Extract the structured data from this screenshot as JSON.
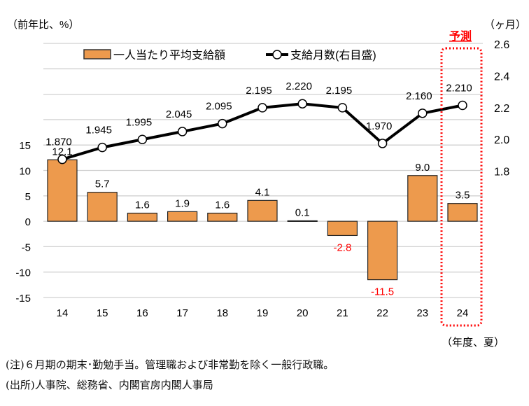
{
  "chart_data": {
    "type": "bar+line",
    "left_axis_label": "（前年比、%）",
    "right_axis_label": "（ヶ月）",
    "x_axis_label": "（年度、夏）",
    "categories": [
      "14",
      "15",
      "16",
      "17",
      "18",
      "19",
      "20",
      "21",
      "22",
      "23",
      "24"
    ],
    "series": [
      {
        "name": "一人当たり平均支給額",
        "type": "bar",
        "axis": "left",
        "values": [
          12.1,
          5.7,
          1.6,
          1.9,
          1.6,
          4.1,
          0.1,
          -2.8,
          -11.5,
          9.0,
          3.5
        ],
        "labels": [
          "12.1",
          "5.7",
          "1.6",
          "1.9",
          "1.6",
          "4.1",
          "0.1",
          "-2.8",
          "-11.5",
          "9.0",
          "3.5"
        ],
        "color": "#ED9A4D"
      },
      {
        "name": "支給月数(右目盛)",
        "type": "line",
        "axis": "right",
        "values": [
          1.87,
          1.945,
          1.995,
          2.045,
          2.095,
          2.195,
          2.22,
          2.195,
          1.97,
          2.16,
          2.21
        ],
        "labels": [
          "1.870",
          "1.945",
          "1.995",
          "2.045",
          "2.095",
          "2.195",
          "2.220",
          "2.195",
          "1.970",
          "2.160",
          "2.210"
        ],
        "color": "#000000"
      }
    ],
    "left_ticks": [
      "15",
      "10",
      "5",
      "0",
      "-5",
      "-10",
      "-15"
    ],
    "left_tick_values": [
      15,
      10,
      5,
      0,
      -5,
      -10,
      -15
    ],
    "right_ticks": [
      "2.6",
      "2.4",
      "2.2",
      "2.0",
      "1.8"
    ],
    "right_tick_values": [
      2.6,
      2.4,
      2.2,
      2.0,
      1.8
    ],
    "left_range": [
      -15,
      35
    ],
    "right_range": [
      1.0,
      2.6
    ],
    "forecast_label": "予測",
    "forecast_category": "24",
    "negative_label_color": "#FF0000",
    "legend_position": "top"
  },
  "notes": [
    "(注)６月期の期末･勤勉手当。管理職および非常勤を除く一般行政職。",
    "(出所)人事院、総務省、内閣官房内閣人事局"
  ]
}
